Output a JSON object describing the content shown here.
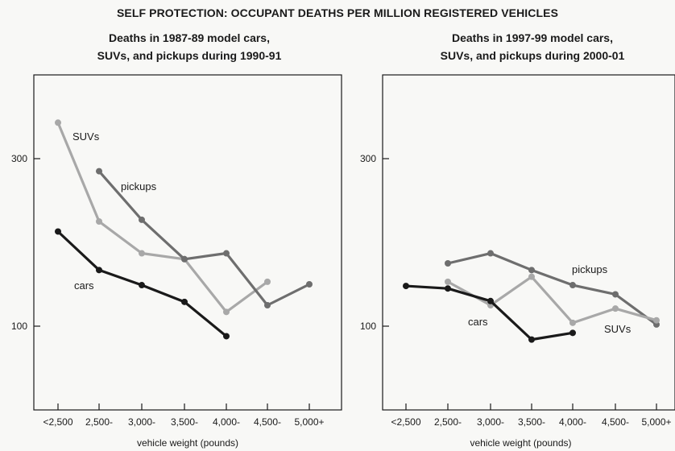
{
  "title": "SELF PROTECTION: OCCUPANT DEATHS PER MILLION REGISTERED VEHICLES",
  "chart_data": [
    {
      "type": "line",
      "title_lines": [
        "Deaths in 1987-89 model cars,",
        "SUVs, and pickups during 1990-91"
      ],
      "xlabel": "vehicle weight (pounds)",
      "ylabel": "",
      "categories": [
        "<2,500",
        "2,500-",
        "3,000-",
        "3,500-",
        "4,000-",
        "4,500-",
        "5,000+"
      ],
      "yticks": [
        100,
        300
      ],
      "ylim": [
        0,
        400
      ],
      "grid": false,
      "series": [
        {
          "name": "SUVs",
          "color": "#a8a8a8",
          "values": [
            343,
            225,
            187,
            180,
            117,
            153,
            null
          ]
        },
        {
          "name": "pickups",
          "color": "#6e6e6e",
          "values": [
            null,
            285,
            227,
            180,
            187,
            125,
            150
          ]
        },
        {
          "name": "cars",
          "color": "#1a1a1a",
          "values": [
            213,
            167,
            149,
            129,
            88,
            null,
            null
          ]
        }
      ]
    },
    {
      "type": "line",
      "title_lines": [
        "Deaths in 1997-99 model cars,",
        "SUVs, and pickups during 2000-01"
      ],
      "xlabel": "vehicle weight (pounds)",
      "ylabel": "",
      "categories": [
        "<2,500",
        "2,500-",
        "3,000-",
        "3,500-",
        "4,000-",
        "4,500-",
        "5,000+"
      ],
      "yticks": [
        100,
        300
      ],
      "ylim": [
        0,
        400
      ],
      "grid": false,
      "series": [
        {
          "name": "pickups",
          "color": "#6e6e6e",
          "values": [
            null,
            175,
            187,
            167,
            149,
            138,
            102
          ]
        },
        {
          "name": "SUVs",
          "color": "#a8a8a8",
          "values": [
            null,
            153,
            125,
            159,
            104,
            121,
            107
          ]
        },
        {
          "name": "cars",
          "color": "#1a1a1a",
          "values": [
            148,
            145,
            130,
            84,
            92,
            null,
            null
          ]
        }
      ]
    }
  ]
}
